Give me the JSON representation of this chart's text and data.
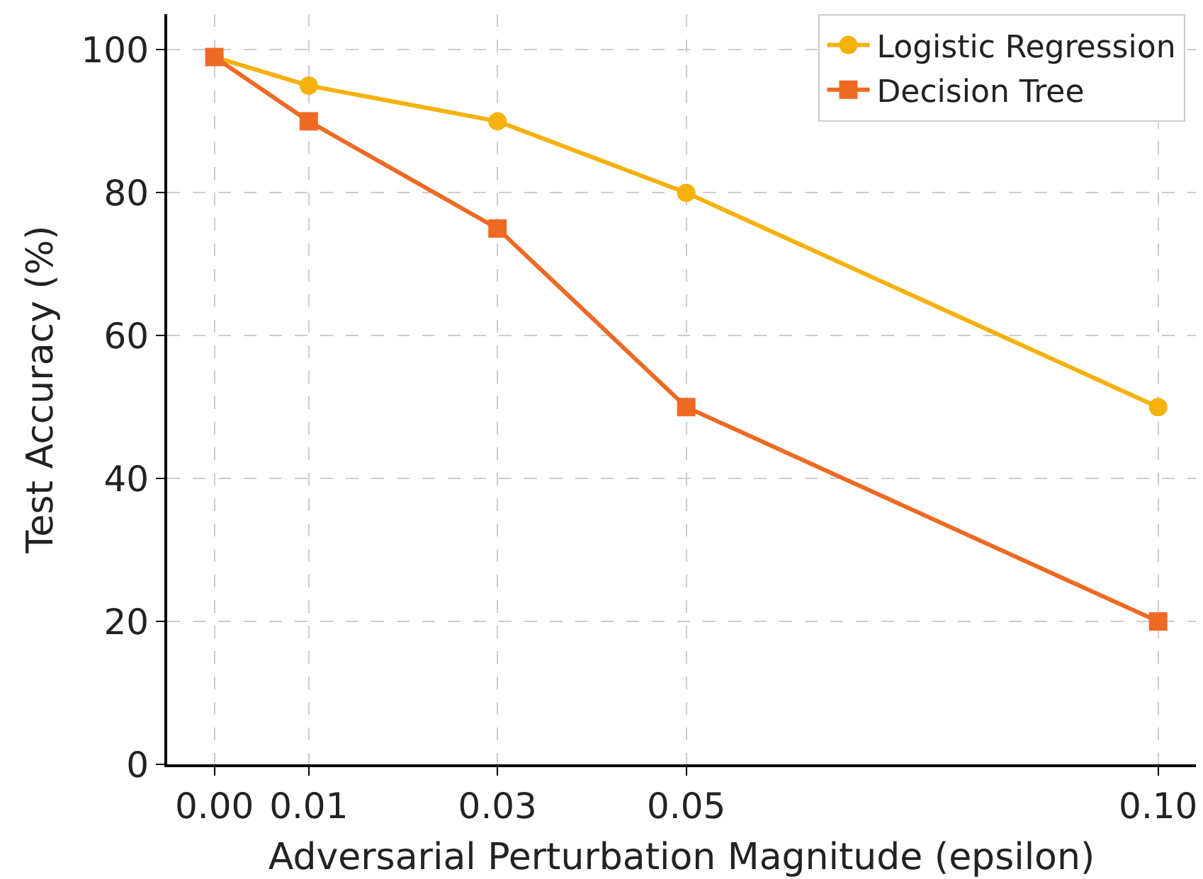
{
  "chart_data": {
    "type": "line",
    "xlabel": "Adversarial Perturbation Magnitude (epsilon)",
    "ylabel": "Test Accuracy (%)",
    "x": [
      0.0,
      0.01,
      0.03,
      0.05,
      0.1
    ],
    "series": [
      {
        "name": "Logistic Regression",
        "color": "#f5b10c",
        "marker": "circle",
        "values": [
          99,
          95,
          90,
          80,
          50
        ]
      },
      {
        "name": "Decision Tree",
        "color": "#ee6a24",
        "marker": "square",
        "values": [
          99,
          90,
          75,
          50,
          20
        ]
      }
    ],
    "xlim": [
      -0.005,
      0.104
    ],
    "ylim": [
      0,
      105
    ],
    "xticks": [
      {
        "value": 0.0,
        "label": "0.00"
      },
      0.01,
      0.03,
      0.05,
      {
        "value": 0.1,
        "label": "0.10"
      }
    ],
    "yticks": [
      0,
      20,
      40,
      60,
      80,
      100
    ],
    "grid": true,
    "legend": "top right",
    "line_style": "solid"
  }
}
